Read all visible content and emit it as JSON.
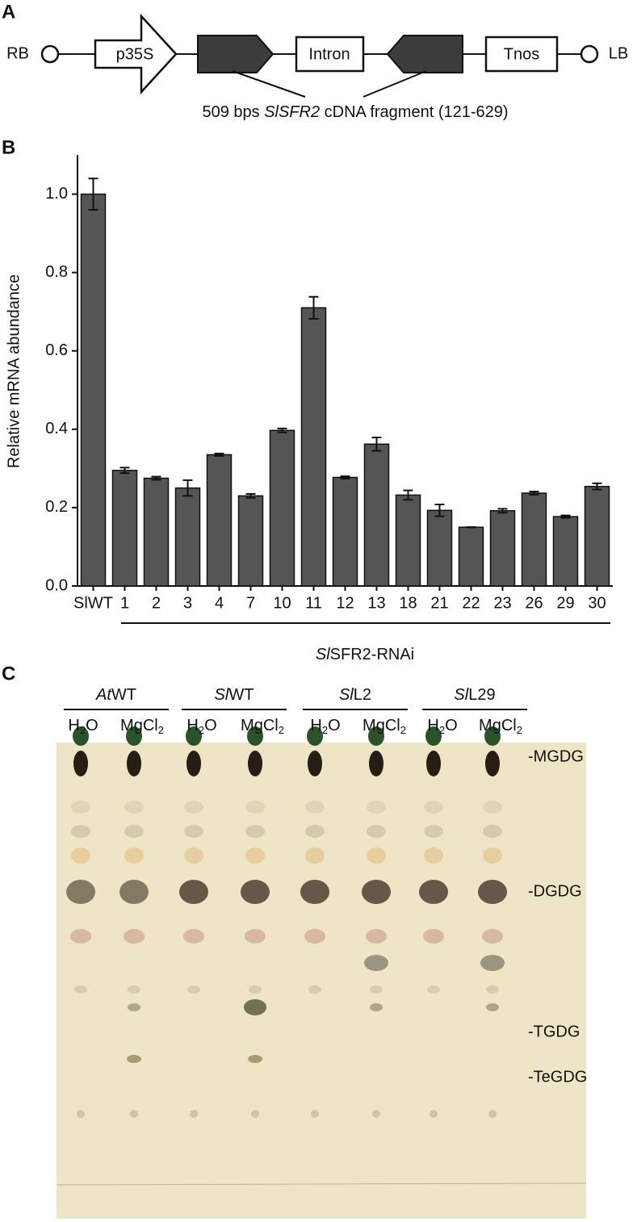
{
  "panels": {
    "a": {
      "letter": "A",
      "rb": "RB",
      "lb": "LB",
      "boxes": [
        "p35S",
        "Intron",
        "Tnos"
      ],
      "caption": [
        "509 bps ",
        "SlSFR2",
        " cDNA fragment (121-629)"
      ]
    },
    "b": {
      "letter": "B",
      "bracket_label": [
        "Sl",
        "SFR2-RNAi"
      ]
    },
    "c": {
      "letter": "C",
      "groups": [
        [
          "At",
          "WT"
        ],
        [
          "Sl",
          "WT"
        ],
        [
          "Sl",
          "L2"
        ],
        [
          "Sl",
          "L29"
        ]
      ],
      "lanes": [
        [
          "H",
          "2",
          "O"
        ],
        [
          "MgCl",
          "2"
        ],
        [
          "H",
          "2",
          "O"
        ],
        [
          "MgCl",
          "2"
        ],
        [
          "H",
          "2",
          "O"
        ],
        [
          "MgCl",
          "2"
        ],
        [
          "H",
          "2",
          "O"
        ],
        [
          "MgCl",
          "2"
        ]
      ],
      "bands": [
        "-MGDG",
        "-DGDG",
        "-TGDG",
        "-TeGDG"
      ]
    }
  },
  "chart_data": {
    "type": "bar",
    "y_label": "Relative mRNA abundance",
    "color": "#555555",
    "categories": [
      "SlWT",
      "1",
      "2",
      "3",
      "4",
      "7",
      "10",
      "11",
      "12",
      "13",
      "18",
      "21",
      "22",
      "23",
      "26",
      "29",
      "30"
    ],
    "values": [
      1.0,
      0.295,
      0.275,
      0.25,
      0.335,
      0.23,
      0.397,
      0.71,
      0.277,
      0.362,
      0.232,
      0.193,
      0.15,
      0.192,
      0.237,
      0.177,
      0.254
    ],
    "errors": [
      0.04,
      0.007,
      0.004,
      0.02,
      0.003,
      0.005,
      0.005,
      0.028,
      0.003,
      0.017,
      0.012,
      0.015,
      0,
      0.005,
      0.004,
      0.003,
      0.008
    ],
    "ylim": [
      0,
      1.1
    ],
    "yticks": [
      {
        "value": 0,
        "label": "0.0"
      },
      {
        "value": 0.2,
        "label": "0.2"
      },
      {
        "value": 0.4,
        "label": "0.4"
      },
      {
        "value": 0.6,
        "label": "0.6"
      },
      {
        "value": 0.8,
        "label": "0.8"
      },
      {
        "value": 1.0,
        "label": "1.0"
      }
    ]
  }
}
